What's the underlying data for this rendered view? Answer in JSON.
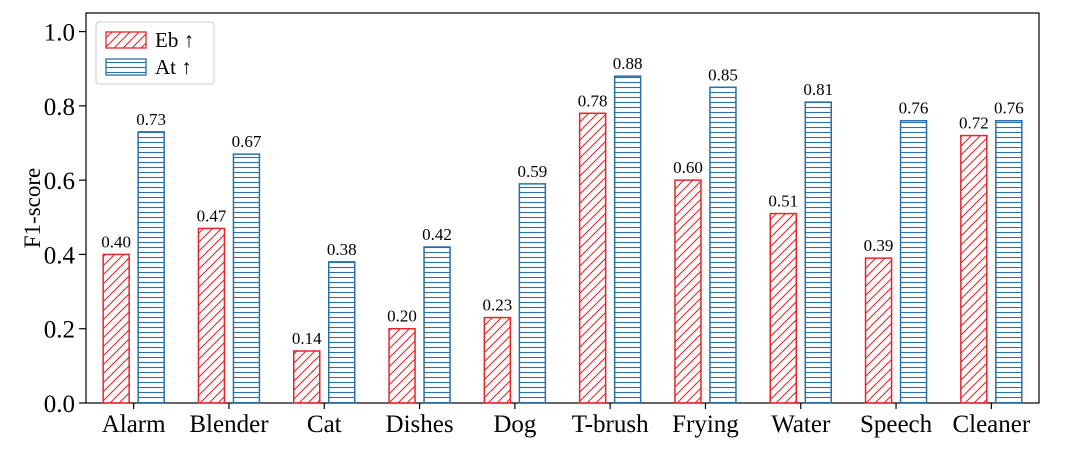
{
  "chart_data": {
    "type": "bar",
    "categories": [
      "Alarm",
      "Blender",
      "Cat",
      "Dishes",
      "Dog",
      "T-brush",
      "Frying",
      "Water",
      "Speech",
      "Cleaner"
    ],
    "series": [
      {
        "name": "Eb ↑",
        "values": [
          0.4,
          0.47,
          0.14,
          0.2,
          0.23,
          0.78,
          0.6,
          0.51,
          0.39,
          0.72
        ],
        "color": "#e8242b",
        "hatch": "diagonal"
      },
      {
        "name": "At ↑",
        "values": [
          0.73,
          0.67,
          0.38,
          0.42,
          0.59,
          0.88,
          0.85,
          0.81,
          0.76,
          0.76
        ],
        "color": "#2a6fa6",
        "hatch": "horizontal"
      }
    ],
    "data_labels": [
      [
        "0.40",
        "0.47",
        "0.14",
        "0.20",
        "0.23",
        "0.78",
        "0.60",
        "0.51",
        "0.39",
        "0.72"
      ],
      [
        "0.73",
        "0.67",
        "0.38",
        "0.42",
        "0.59",
        "0.88",
        "0.85",
        "0.81",
        "0.76",
        "0.76"
      ]
    ],
    "ylabel": "F1-score",
    "ylim": [
      0,
      1.05
    ],
    "yticks": [
      0.0,
      0.2,
      0.4,
      0.6,
      0.8,
      1.0
    ],
    "ytick_labels": [
      "0.0",
      "0.2",
      "0.4",
      "0.6",
      "0.8",
      "1.0"
    ],
    "grid": false,
    "legend_position": "top-left"
  }
}
